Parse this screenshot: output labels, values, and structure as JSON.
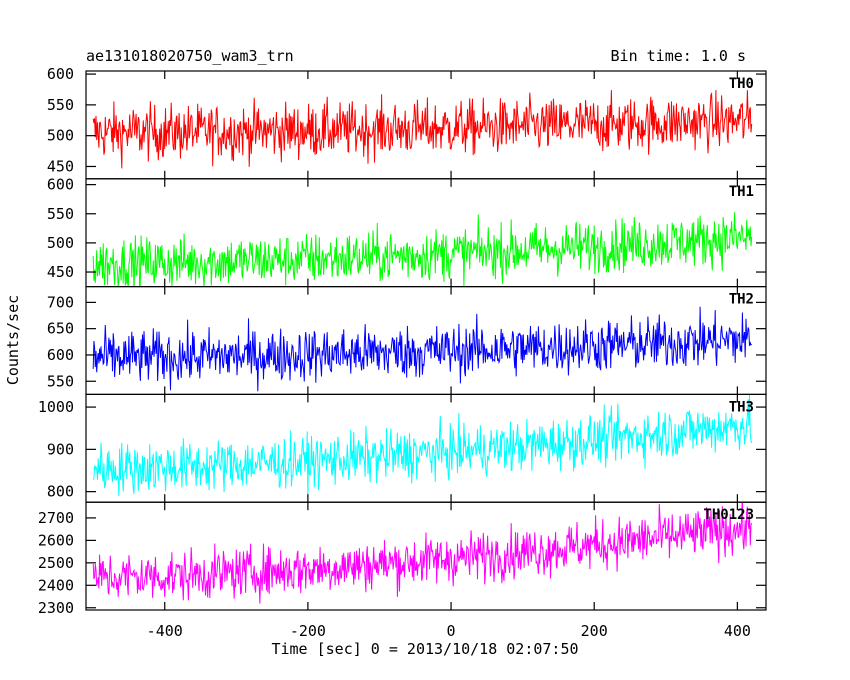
{
  "header": {
    "title": "ae131018020750_wam3_trn",
    "bin_time": "Bin time: 1.0 s"
  },
  "chart_data": {
    "type": "line",
    "xlabel": "Time [sec] 0 = 2013/10/18 02:07:50",
    "ylabel": "Counts/sec",
    "xlim": [
      -510,
      440
    ],
    "x_range": [
      -500,
      420
    ],
    "x_ticks": [
      -400,
      -200,
      0,
      200,
      400
    ],
    "bin_time_s": 1.0,
    "panels": [
      {
        "name": "TH0",
        "color": "#ff0000",
        "ylim": [
          430,
          605
        ],
        "yticks": [
          450,
          500,
          550,
          600
        ],
        "baseline_start": 505,
        "baseline_end": 525,
        "noise": 22
      },
      {
        "name": "TH1",
        "color": "#00ff00",
        "ylim": [
          425,
          610
        ],
        "yticks": [
          450,
          500,
          550,
          600
        ],
        "baseline_start": 465,
        "baseline_end": 510,
        "noise": 22
      },
      {
        "name": "TH2",
        "color": "#0000ff",
        "ylim": [
          525,
          730
        ],
        "yticks": [
          550,
          600,
          650,
          700
        ],
        "baseline_start": 595,
        "baseline_end": 630,
        "noise": 25
      },
      {
        "name": "TH3",
        "color": "#00ffff",
        "ylim": [
          775,
          1030
        ],
        "yticks": [
          800,
          900,
          1000
        ],
        "baseline_start": 855,
        "baseline_end": 960,
        "noise": 30
      },
      {
        "name": "TH0123",
        "color": "#ff00ff",
        "ylim": [
          2290,
          2770
        ],
        "yticks": [
          2300,
          2400,
          2500,
          2600,
          2700
        ],
        "baseline_start": 2435,
        "baseline_end": 2660,
        "noise": 55
      }
    ]
  }
}
